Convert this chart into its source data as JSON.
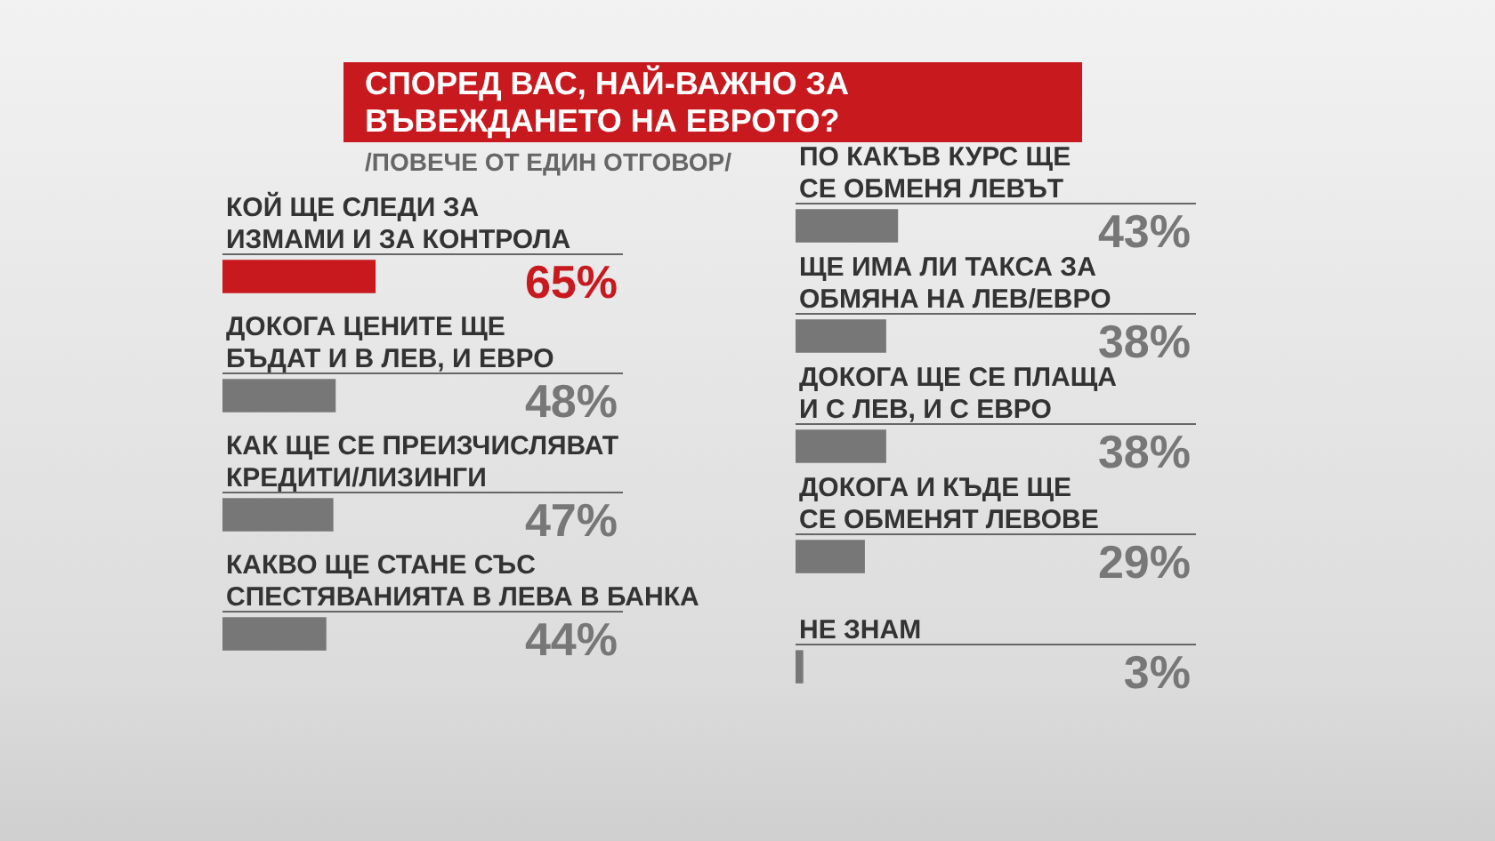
{
  "chart_data": [
    {
      "type": "bar",
      "orientation": "horizontal",
      "title": "СПОРЕД ВАС, НАЙ-ВАЖНО ЗА ВЪВЕЖДАНЕТО НА ЕВРОТО?",
      "subtitle": "/ПОВЕЧЕ ОТ ЕДИН ОТГОВОР/",
      "tick_labels": false,
      "grid": false,
      "legend": false,
      "categories": [
        "КОЙ ЩЕ СЛЕДИ ЗА ИЗМАМИ И ЗА КОНТРОЛА",
        "ДОКОГА ЦЕНИТЕ ЩЕ БЪДАТ И В ЛЕВ, И ЕВРО",
        "КАК ЩЕ СЕ ПРЕИЗЧИСЛЯВАТ КРЕДИТИ/ЛИЗИНГИ",
        "КАКВО ЩЕ СТАНЕ СЪС СПЕСТЯВАНИЯТА В ЛЕВА В БАНКА"
      ],
      "values": [
        65,
        48,
        47,
        44
      ],
      "colors": [
        "#c8191f",
        "#777777",
        "#777777",
        "#777777"
      ],
      "value_labels": [
        "65%",
        "48%",
        "47%",
        "44%"
      ]
    },
    {
      "type": "bar",
      "orientation": "horizontal",
      "tick_labels": false,
      "grid": false,
      "legend": false,
      "categories": [
        "ПО КАКЪВ КУРС ЩЕ СЕ ОБМЕНЯ ЛЕВЪТ",
        "ЩЕ ИМА ЛИ ТАКСА ЗА ОБМЯНА НА ЛЕВ/ЕВРО",
        "ДОКОГА ЩЕ СЕ ПЛАЩА И С ЛЕВ, И С ЕВРО",
        "ДОКОГА И КЪДЕ ЩЕ СЕ ОБМЕНЯТ ЛЕВОВЕ",
        "НЕ ЗНАМ"
      ],
      "values": [
        43,
        38,
        38,
        29,
        3
      ],
      "colors": [
        "#777777",
        "#777777",
        "#777777",
        "#777777",
        "#777777"
      ],
      "value_labels": [
        "43%",
        "38%",
        "38%",
        "29%",
        "3%"
      ]
    }
  ]
}
